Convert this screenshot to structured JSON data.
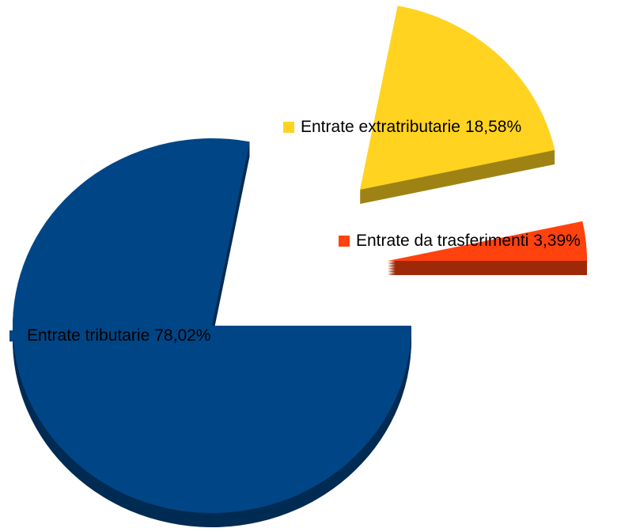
{
  "chart_data": {
    "type": "pie",
    "categories": [
      "Entrate tributarie",
      "Entrate extratributarie",
      "Entrate da trasferimenti"
    ],
    "values": [
      78.02,
      18.58,
      3.39
    ],
    "value_labels": [
      "78,02%",
      "18,58%",
      "3,39%"
    ],
    "colors": [
      "#004586",
      "#ffd320",
      "#ff420e"
    ]
  }
}
